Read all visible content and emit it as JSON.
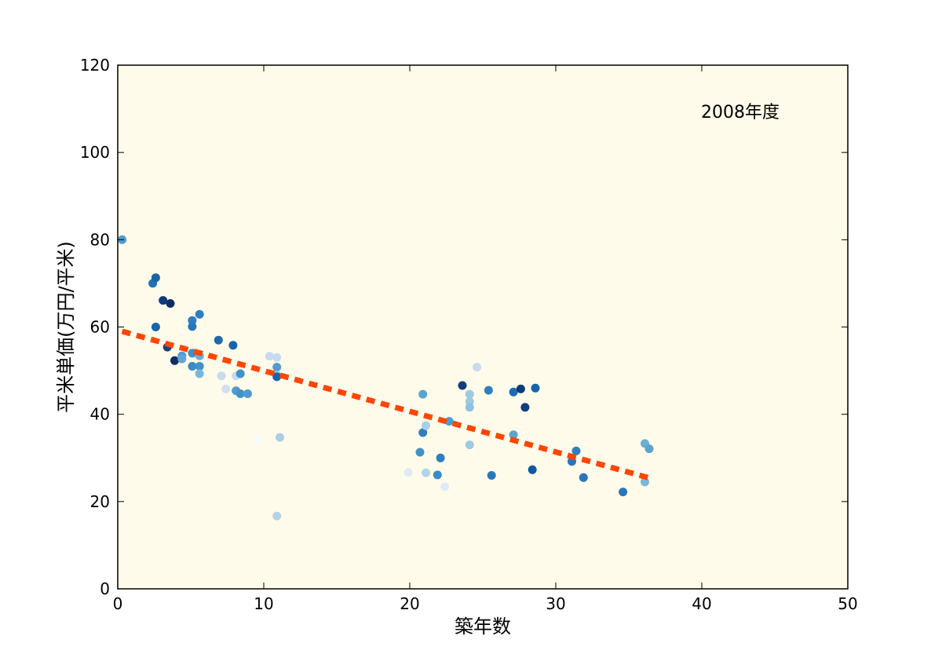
{
  "chart_data": {
    "type": "scatter",
    "title": "",
    "annotation": "2008年度",
    "xlabel": "築年数",
    "ylabel": "平米単価(万円/平米)",
    "xlim": [
      0,
      50
    ],
    "ylim": [
      0,
      120
    ],
    "xticks": [
      "0",
      "10",
      "20",
      "30",
      "40",
      "50"
    ],
    "yticks": [
      "0",
      "20",
      "40",
      "60",
      "80",
      "100",
      "120"
    ],
    "grid": false,
    "background": "#fffbea",
    "trendline": {
      "x": [
        0.3,
        36.3
      ],
      "y": [
        59.0,
        25.5
      ],
      "color": "#ff4500"
    },
    "points": [
      {
        "x": 0.3,
        "y": 80.0,
        "c": "#4f9bcf"
      },
      {
        "x": 2.4,
        "y": 70.0,
        "c": "#2171b5"
      },
      {
        "x": 2.6,
        "y": 71.3,
        "c": "#1a63a8"
      },
      {
        "x": 2.6,
        "y": 60.0,
        "c": "#1764ab"
      },
      {
        "x": 3.1,
        "y": 66.1,
        "c": "#0d3a78"
      },
      {
        "x": 3.6,
        "y": 65.4,
        "c": "#0b2f63"
      },
      {
        "x": 3.4,
        "y": 55.4,
        "c": "#0f3f7d"
      },
      {
        "x": 3.9,
        "y": 52.3,
        "c": "#0b2f63"
      },
      {
        "x": 4.4,
        "y": 53.4,
        "c": "#4f9bcf"
      },
      {
        "x": 4.4,
        "y": 52.7,
        "c": "#60a5d6"
      },
      {
        "x": 5.1,
        "y": 61.5,
        "c": "#2f7ec1"
      },
      {
        "x": 5.1,
        "y": 60.1,
        "c": "#2a76bb"
      },
      {
        "x": 5.1,
        "y": 54.0,
        "c": "#4190c8"
      },
      {
        "x": 5.1,
        "y": 51.0,
        "c": "#3a8ac6"
      },
      {
        "x": 5.6,
        "y": 62.9,
        "c": "#2f7ec1"
      },
      {
        "x": 5.6,
        "y": 53.4,
        "c": "#6aaed6"
      },
      {
        "x": 5.6,
        "y": 51.0,
        "c": "#4292c6"
      },
      {
        "x": 5.6,
        "y": 49.3,
        "c": "#78b7dc"
      },
      {
        "x": 6.9,
        "y": 57.0,
        "c": "#1d6aaf"
      },
      {
        "x": 7.1,
        "y": 48.8,
        "c": "#c6dbef"
      },
      {
        "x": 7.4,
        "y": 45.8,
        "c": "#cfe1f2"
      },
      {
        "x": 7.9,
        "y": 55.8,
        "c": "#1764ab"
      },
      {
        "x": 8.1,
        "y": 48.8,
        "c": "#c6dbef"
      },
      {
        "x": 8.1,
        "y": 45.4,
        "c": "#4f9bcf"
      },
      {
        "x": 8.4,
        "y": 49.3,
        "c": "#4292c6"
      },
      {
        "x": 8.4,
        "y": 44.7,
        "c": "#4292c6"
      },
      {
        "x": 8.9,
        "y": 44.7,
        "c": "#4f9bcf"
      },
      {
        "x": 9.6,
        "y": 34.0,
        "c": "#f7fbff"
      },
      {
        "x": 10.4,
        "y": 53.3,
        "c": "#c6dbef"
      },
      {
        "x": 10.9,
        "y": 53.0,
        "c": "#c6dbef"
      },
      {
        "x": 10.9,
        "y": 50.8,
        "c": "#4f9bcf"
      },
      {
        "x": 10.9,
        "y": 49.0,
        "c": "#9ecae1"
      },
      {
        "x": 10.9,
        "y": 48.6,
        "c": "#1764ab"
      },
      {
        "x": 11.1,
        "y": 34.7,
        "c": "#a9cfe5"
      },
      {
        "x": 10.9,
        "y": 16.7,
        "c": "#b3d3e8"
      },
      {
        "x": 19.9,
        "y": 26.7,
        "c": "#deebf7"
      },
      {
        "x": 20.7,
        "y": 31.3,
        "c": "#4292c6"
      },
      {
        "x": 20.9,
        "y": 44.6,
        "c": "#5ba3d0"
      },
      {
        "x": 20.9,
        "y": 35.8,
        "c": "#2f7ec1"
      },
      {
        "x": 21.1,
        "y": 37.4,
        "c": "#a9cfe5"
      },
      {
        "x": 21.1,
        "y": 26.6,
        "c": "#b3d3e8"
      },
      {
        "x": 21.9,
        "y": 26.1,
        "c": "#3a8ac6"
      },
      {
        "x": 22.1,
        "y": 30.0,
        "c": "#2f7ec1"
      },
      {
        "x": 22.4,
        "y": 23.4,
        "c": "#deebf7"
      },
      {
        "x": 22.7,
        "y": 38.4,
        "c": "#4f9bcf"
      },
      {
        "x": 23.6,
        "y": 46.6,
        "c": "#0f3f7d"
      },
      {
        "x": 24.1,
        "y": 44.6,
        "c": "#9ecae1"
      },
      {
        "x": 24.1,
        "y": 42.9,
        "c": "#9ecae1"
      },
      {
        "x": 24.1,
        "y": 41.6,
        "c": "#8fc2de"
      },
      {
        "x": 24.1,
        "y": 33.0,
        "c": "#9ecae1"
      },
      {
        "x": 24.6,
        "y": 50.8,
        "c": "#c6dbef"
      },
      {
        "x": 25.4,
        "y": 45.5,
        "c": "#2f7ec1"
      },
      {
        "x": 25.6,
        "y": 26.0,
        "c": "#2a76bb"
      },
      {
        "x": 27.1,
        "y": 45.1,
        "c": "#1d6aaf"
      },
      {
        "x": 27.1,
        "y": 35.3,
        "c": "#5ba3d0"
      },
      {
        "x": 27.6,
        "y": 45.8,
        "c": "#0d3a78"
      },
      {
        "x": 27.9,
        "y": 41.6,
        "c": "#0f3f7d"
      },
      {
        "x": 28.4,
        "y": 27.3,
        "c": "#1158a0"
      },
      {
        "x": 28.6,
        "y": 46.0,
        "c": "#1764ab"
      },
      {
        "x": 31.1,
        "y": 29.2,
        "c": "#2a76bb"
      },
      {
        "x": 31.4,
        "y": 31.6,
        "c": "#2f7ec1"
      },
      {
        "x": 31.9,
        "y": 25.5,
        "c": "#2a76bb"
      },
      {
        "x": 34.6,
        "y": 22.2,
        "c": "#2a76bb"
      },
      {
        "x": 36.1,
        "y": 33.3,
        "c": "#6aaed6"
      },
      {
        "x": 36.1,
        "y": 24.5,
        "c": "#78b7dc"
      },
      {
        "x": 36.4,
        "y": 32.1,
        "c": "#5ba3d0"
      }
    ]
  }
}
